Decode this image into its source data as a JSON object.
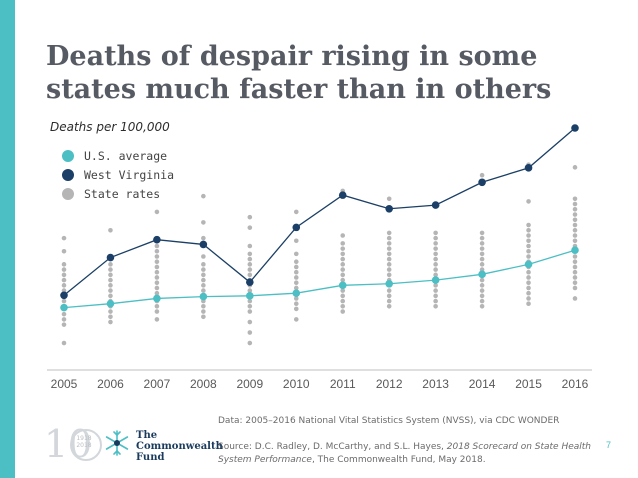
{
  "slide": {
    "title": "Deaths of despair rising in some states much faster than in others",
    "subtitle": "Deaths per 100,000",
    "page_number": "7",
    "data_note": "Data: 2005–2016 National Vital Statistics System (NVSS), via CDC WONDER",
    "source_prefix": "Source: D.C. Radley, D. McCarthy, and S.L. Hayes, ",
    "source_italic": "2018 Scorecard on State Health System Performance",
    "source_suffix": ", The Commonwealth Fund, May 2018.",
    "logo": {
      "ten": "10",
      "years_top": "1918",
      "years_bottom": "2018",
      "line1": "The",
      "line2": "Commonwealth",
      "line3": "Fund"
    }
  },
  "colors": {
    "accent": "#4bbfc4",
    "us_avg": "#4bbfc4",
    "wv": "#1b3f66",
    "state": "#b5b5b5"
  },
  "chart_data": {
    "type": "line",
    "title": "Deaths of despair rising in some states much faster than in others",
    "ylabel": "Deaths per 100,000",
    "x": [
      "2005",
      "2006",
      "2007",
      "2008",
      "2009",
      "2010",
      "2011",
      "2012",
      "2013",
      "2014",
      "2015",
      "2016"
    ],
    "ylim": [
      10,
      100
    ],
    "grid": false,
    "legend": "top-left",
    "series": [
      {
        "name": "U.S. average",
        "values": [
          31.5,
          33,
          35,
          35.7,
          36,
          37,
          40,
          40.6,
          42,
          44.2,
          48,
          53.4
        ]
      },
      {
        "name": "West Virginia",
        "values": [
          36.2,
          50.6,
          57.4,
          55.6,
          41.2,
          62.1,
          74.4,
          69.2,
          70.6,
          79.3,
          84.8,
          100
        ]
      },
      {
        "name": "State rates",
        "points": [
          [
            2005,
            18
          ],
          [
            2005,
            25
          ],
          [
            2005,
            27
          ],
          [
            2005,
            29
          ],
          [
            2005,
            32
          ],
          [
            2005,
            34
          ],
          [
            2005,
            36
          ],
          [
            2005,
            38
          ],
          [
            2005,
            40
          ],
          [
            2005,
            42
          ],
          [
            2005,
            44
          ],
          [
            2005,
            46
          ],
          [
            2005,
            48
          ],
          [
            2005,
            53
          ],
          [
            2005,
            58
          ],
          [
            2006,
            26
          ],
          [
            2006,
            28
          ],
          [
            2006,
            30
          ],
          [
            2006,
            32
          ],
          [
            2006,
            34
          ],
          [
            2006,
            36
          ],
          [
            2006,
            38
          ],
          [
            2006,
            40
          ],
          [
            2006,
            42
          ],
          [
            2006,
            44
          ],
          [
            2006,
            46
          ],
          [
            2006,
            48
          ],
          [
            2006,
            51
          ],
          [
            2006,
            61
          ],
          [
            2007,
            27
          ],
          [
            2007,
            30
          ],
          [
            2007,
            32
          ],
          [
            2007,
            34
          ],
          [
            2007,
            35
          ],
          [
            2007,
            37
          ],
          [
            2007,
            39
          ],
          [
            2007,
            41
          ],
          [
            2007,
            43
          ],
          [
            2007,
            45
          ],
          [
            2007,
            47
          ],
          [
            2007,
            49
          ],
          [
            2007,
            51
          ],
          [
            2007,
            53
          ],
          [
            2007,
            55
          ],
          [
            2007,
            57
          ],
          [
            2007,
            68
          ],
          [
            2008,
            28
          ],
          [
            2008,
            30
          ],
          [
            2008,
            32
          ],
          [
            2008,
            34
          ],
          [
            2008,
            36
          ],
          [
            2008,
            38
          ],
          [
            2008,
            40
          ],
          [
            2008,
            42
          ],
          [
            2008,
            44
          ],
          [
            2008,
            46
          ],
          [
            2008,
            48
          ],
          [
            2008,
            51
          ],
          [
            2008,
            58
          ],
          [
            2008,
            64
          ],
          [
            2008,
            74
          ],
          [
            2009,
            18
          ],
          [
            2009,
            22
          ],
          [
            2009,
            26
          ],
          [
            2009,
            30
          ],
          [
            2009,
            32
          ],
          [
            2009,
            34
          ],
          [
            2009,
            36
          ],
          [
            2009,
            38
          ],
          [
            2009,
            40
          ],
          [
            2009,
            42
          ],
          [
            2009,
            44
          ],
          [
            2009,
            46
          ],
          [
            2009,
            48
          ],
          [
            2009,
            50
          ],
          [
            2009,
            52
          ],
          [
            2009,
            55
          ],
          [
            2009,
            62
          ],
          [
            2009,
            66
          ],
          [
            2010,
            27
          ],
          [
            2010,
            31
          ],
          [
            2010,
            33
          ],
          [
            2010,
            35
          ],
          [
            2010,
            37
          ],
          [
            2010,
            39
          ],
          [
            2010,
            41
          ],
          [
            2010,
            43
          ],
          [
            2010,
            45
          ],
          [
            2010,
            47
          ],
          [
            2010,
            49
          ],
          [
            2010,
            52
          ],
          [
            2010,
            57
          ],
          [
            2010,
            68
          ],
          [
            2011,
            30
          ],
          [
            2011,
            32
          ],
          [
            2011,
            34
          ],
          [
            2011,
            36
          ],
          [
            2011,
            38
          ],
          [
            2011,
            40
          ],
          [
            2011,
            42
          ],
          [
            2011,
            44
          ],
          [
            2011,
            46
          ],
          [
            2011,
            48
          ],
          [
            2011,
            50
          ],
          [
            2011,
            52
          ],
          [
            2011,
            54
          ],
          [
            2011,
            56
          ],
          [
            2011,
            59
          ],
          [
            2011,
            76
          ],
          [
            2012,
            32
          ],
          [
            2012,
            34
          ],
          [
            2012,
            36
          ],
          [
            2012,
            38
          ],
          [
            2012,
            40
          ],
          [
            2012,
            42
          ],
          [
            2012,
            44
          ],
          [
            2012,
            46
          ],
          [
            2012,
            48
          ],
          [
            2012,
            50
          ],
          [
            2012,
            52
          ],
          [
            2012,
            54
          ],
          [
            2012,
            56
          ],
          [
            2012,
            58
          ],
          [
            2012,
            60
          ],
          [
            2012,
            73
          ],
          [
            2013,
            32
          ],
          [
            2013,
            34
          ],
          [
            2013,
            36
          ],
          [
            2013,
            38
          ],
          [
            2013,
            40
          ],
          [
            2013,
            42
          ],
          [
            2013,
            44
          ],
          [
            2013,
            46
          ],
          [
            2013,
            48
          ],
          [
            2013,
            50
          ],
          [
            2013,
            52
          ],
          [
            2013,
            54
          ],
          [
            2013,
            56
          ],
          [
            2013,
            58
          ],
          [
            2013,
            60
          ],
          [
            2013,
            71
          ],
          [
            2014,
            32
          ],
          [
            2014,
            34
          ],
          [
            2014,
            36
          ],
          [
            2014,
            38
          ],
          [
            2014,
            40
          ],
          [
            2014,
            42
          ],
          [
            2014,
            44
          ],
          [
            2014,
            46
          ],
          [
            2014,
            48
          ],
          [
            2014,
            50
          ],
          [
            2014,
            52
          ],
          [
            2014,
            54
          ],
          [
            2014,
            56
          ],
          [
            2014,
            58
          ],
          [
            2014,
            60
          ],
          [
            2014,
            82
          ],
          [
            2015,
            33
          ],
          [
            2015,
            35
          ],
          [
            2015,
            37
          ],
          [
            2015,
            39
          ],
          [
            2015,
            41
          ],
          [
            2015,
            43
          ],
          [
            2015,
            45
          ],
          [
            2015,
            47
          ],
          [
            2015,
            49
          ],
          [
            2015,
            51
          ],
          [
            2015,
            53
          ],
          [
            2015,
            55
          ],
          [
            2015,
            57
          ],
          [
            2015,
            59
          ],
          [
            2015,
            61
          ],
          [
            2015,
            63
          ],
          [
            2015,
            72
          ],
          [
            2015,
            86
          ],
          [
            2016,
            35
          ],
          [
            2016,
            39
          ],
          [
            2016,
            41
          ],
          [
            2016,
            43
          ],
          [
            2016,
            45
          ],
          [
            2016,
            47
          ],
          [
            2016,
            49
          ],
          [
            2016,
            51
          ],
          [
            2016,
            53
          ],
          [
            2016,
            55
          ],
          [
            2016,
            57
          ],
          [
            2016,
            59
          ],
          [
            2016,
            61
          ],
          [
            2016,
            63
          ],
          [
            2016,
            65
          ],
          [
            2016,
            67
          ],
          [
            2016,
            69
          ],
          [
            2016,
            71
          ],
          [
            2016,
            73
          ],
          [
            2016,
            85
          ]
        ]
      }
    ]
  }
}
